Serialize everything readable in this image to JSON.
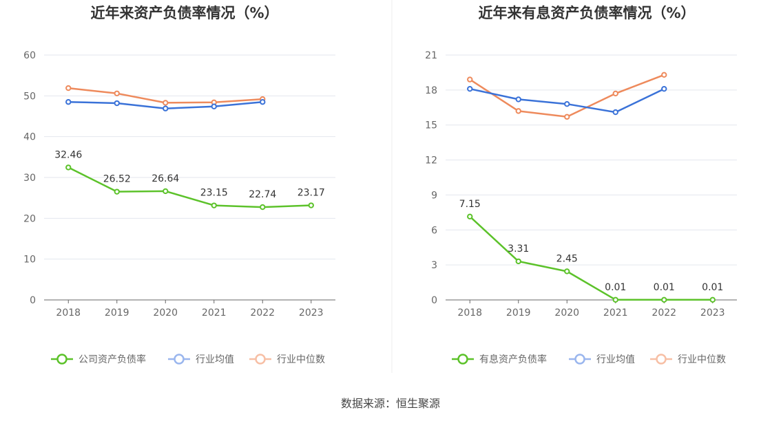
{
  "chart_data": [
    {
      "type": "line",
      "title": "近年来资产负债率情况（%）",
      "categories": [
        "2018",
        "2019",
        "2020",
        "2021",
        "2022",
        "2023"
      ],
      "ylim": [
        0,
        60
      ],
      "yticks": [
        "0",
        "10",
        "20",
        "30",
        "40",
        "50",
        "60"
      ],
      "grid": true,
      "legend_position": "bottom",
      "series": [
        {
          "name": "公司资产负债率",
          "color": "#5cc22a",
          "values": [
            32.46,
            26.52,
            26.64,
            23.15,
            22.74,
            23.17
          ],
          "labels": [
            "32.46",
            "26.52",
            "26.64",
            "23.15",
            "22.74",
            "23.17"
          ]
        },
        {
          "name": "行业均值",
          "color": "#3a72d8",
          "values": [
            48.5,
            48.2,
            46.9,
            47.4,
            48.5,
            null
          ]
        },
        {
          "name": "行业中位数",
          "color": "#ee8a5c",
          "values": [
            51.9,
            50.6,
            48.3,
            48.4,
            49.2,
            null
          ]
        }
      ]
    },
    {
      "type": "line",
      "title": "近年来有息资产负债率情况（%）",
      "categories": [
        "2018",
        "2019",
        "2020",
        "2021",
        "2022",
        "2023"
      ],
      "ylim": [
        0,
        21
      ],
      "yticks": [
        "0",
        "3",
        "6",
        "9",
        "12",
        "15",
        "18",
        "21"
      ],
      "grid": true,
      "legend_position": "bottom",
      "series": [
        {
          "name": "有息资产负债率",
          "color": "#5cc22a",
          "values": [
            7.15,
            3.31,
            2.45,
            0.01,
            0.01,
            0.01
          ],
          "labels": [
            "7.15",
            "3.31",
            "2.45",
            "0.01",
            "0.01",
            "0.01"
          ]
        },
        {
          "name": "行业均值",
          "color": "#3a72d8",
          "values": [
            18.1,
            17.2,
            16.8,
            16.1,
            18.1,
            null
          ]
        },
        {
          "name": "行业中位数",
          "color": "#ee8a5c",
          "values": [
            18.9,
            16.2,
            15.7,
            17.7,
            19.3,
            null
          ]
        }
      ]
    }
  ],
  "footer": {
    "source": "数据来源：恒生聚源"
  },
  "colors": {
    "grid": "#e3e6ee",
    "axis": "#666666",
    "divider": "#eeeeee",
    "legend_pale": {
      "#3a72d8": "#9ab6ee",
      "#ee8a5c": "#f7bfa5"
    }
  }
}
